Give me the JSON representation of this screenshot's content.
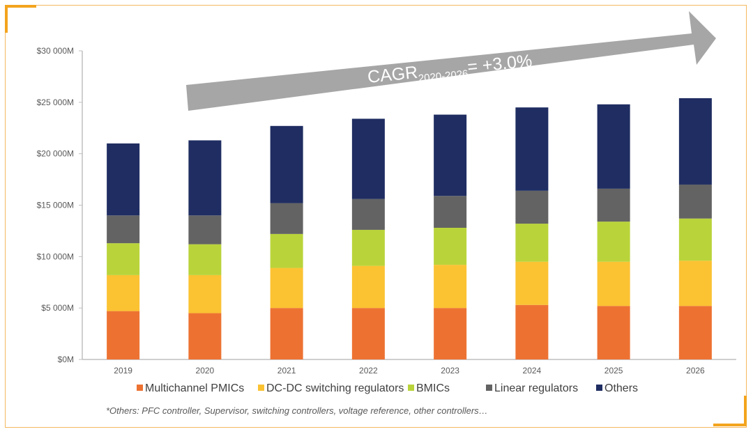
{
  "chart_data": {
    "type": "bar",
    "stacked": true,
    "categories": [
      "2019",
      "2020",
      "2021",
      "2022",
      "2023",
      "2024",
      "2025",
      "2026"
    ],
    "series": [
      {
        "name": "Multichannel PMICs",
        "color": "#ed7232",
        "values": [
          4700,
          4500,
          5000,
          5000,
          5000,
          5300,
          5200,
          5200
        ]
      },
      {
        "name": "DC-DC switching regulators",
        "color": "#fbc232",
        "values": [
          3500,
          3700,
          3900,
          4100,
          4200,
          4200,
          4300,
          4400
        ]
      },
      {
        "name": "BMICs",
        "color": "#b9d43a",
        "values": [
          3100,
          3000,
          3300,
          3500,
          3600,
          3700,
          3900,
          4100
        ]
      },
      {
        "name": "Linear regulators",
        "color": "#636363",
        "values": [
          2700,
          2800,
          3000,
          3000,
          3100,
          3200,
          3200,
          3300
        ]
      },
      {
        "name": "Others",
        "color": "#1f2d62",
        "values": [
          7000,
          7300,
          7500,
          7800,
          7900,
          8100,
          8200,
          8400
        ]
      }
    ],
    "yaxis": {
      "ticks": [
        0,
        5000,
        10000,
        15000,
        20000,
        25000,
        30000
      ],
      "tick_labels": [
        "$0M",
        "$5 000M",
        "$10 000M",
        "$15 000M",
        "$20 000M",
        "$25 000M",
        "$30 000M"
      ],
      "ylim": [
        0,
        30000
      ]
    },
    "grid": false,
    "legend_position": "bottom",
    "annotation": {
      "cagr_prefix": "CAGR",
      "cagr_subscript": "2020-2026",
      "cagr_value": "= +3.0%"
    },
    "footnote": "*Others: PFC controller, Supervisor, switching controllers, voltage reference, other controllers…"
  },
  "colors": {
    "frame_accent": "#f3a41e",
    "axis": "#bfbfbf",
    "arrow": "#a6a6a6"
  }
}
